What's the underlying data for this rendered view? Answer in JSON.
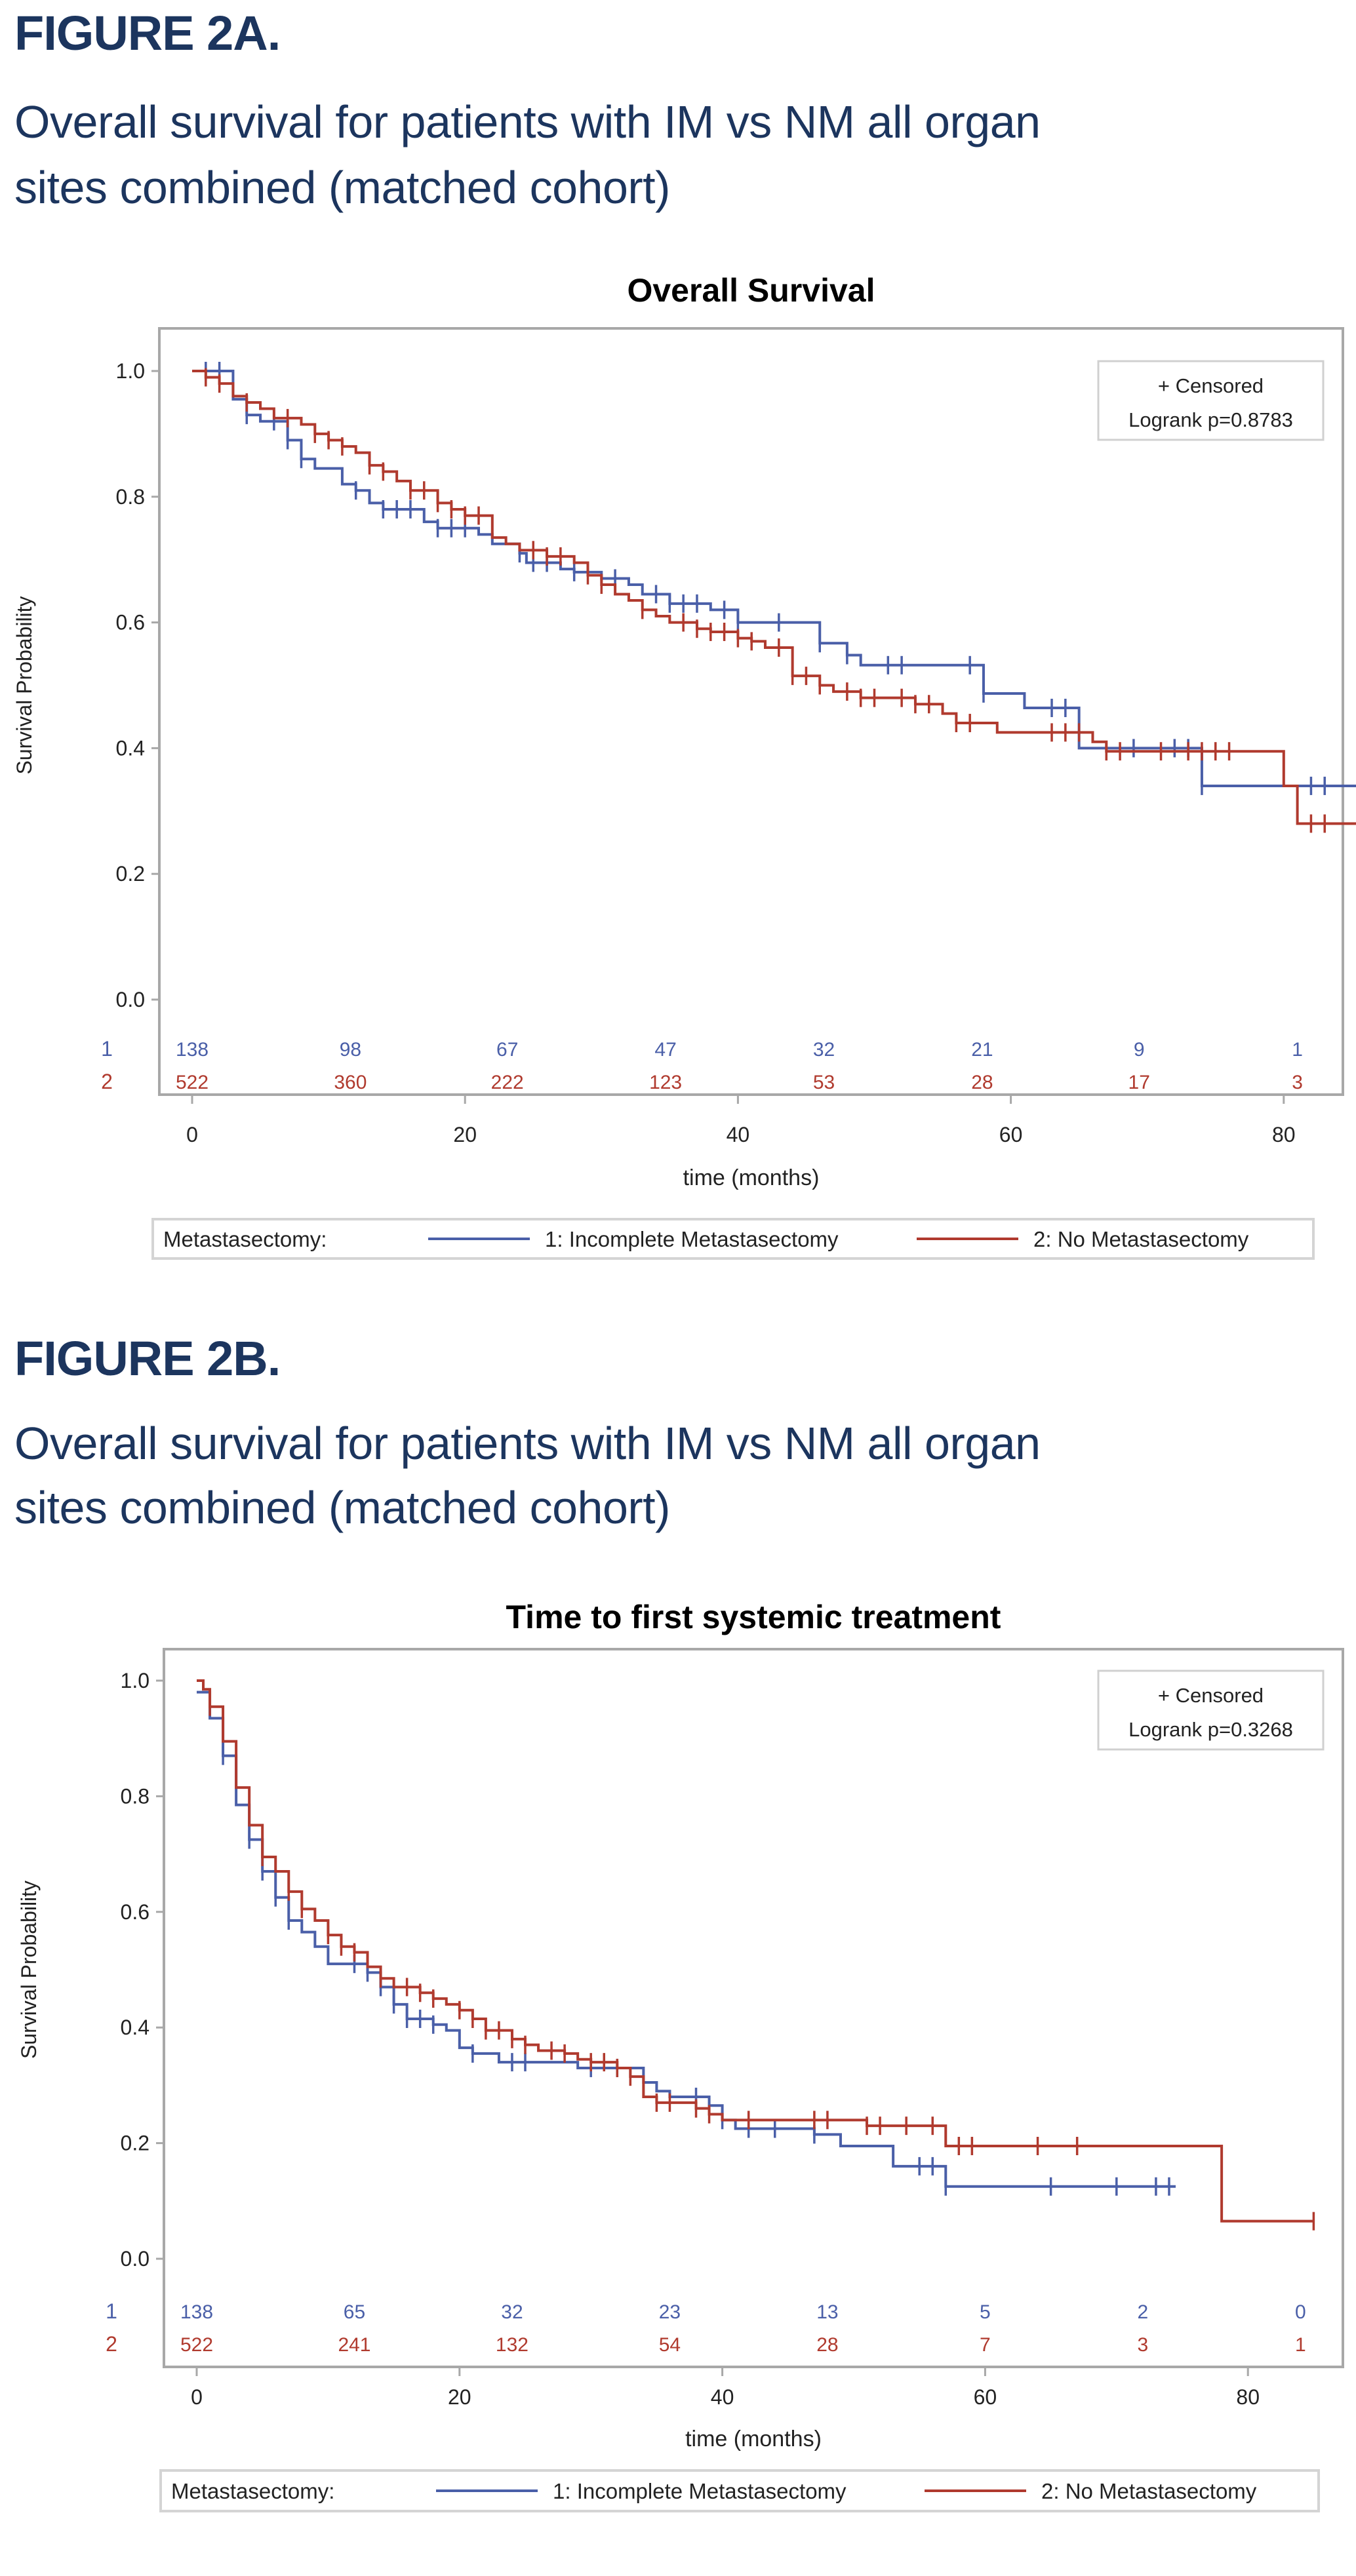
{
  "figures": [
    {
      "label": "FIGURE 2A.",
      "subtitle_line1": "Overall survival for patients with IM vs NM all organ",
      "subtitle_line2": "sites combined (matched cohort)"
    },
    {
      "label": "FIGURE 2B.",
      "subtitle_line1": "Overall survival for patients with IM vs NM all organ",
      "subtitle_line2": "sites combined (matched cohort)"
    }
  ],
  "colors": {
    "heading": "#1c355e",
    "group1": "#4a5fa8",
    "group2": "#b03a2e",
    "frame": "#a8a8a8"
  },
  "chart_data": [
    {
      "type": "line",
      "subtype": "kaplan-meier",
      "title": "Overall Survival",
      "xlabel": "time (months)",
      "ylabel": "Survival Probability",
      "xlim": [
        -4,
        87
      ],
      "ylim": [
        0,
        1
      ],
      "xticks": [
        0,
        20,
        40,
        60,
        80
      ],
      "yticks": [
        "0.0",
        "0.2",
        "0.4",
        "0.6",
        "0.8",
        "1.0"
      ],
      "inset": {
        "line1": "+ Censored",
        "line2": "Logrank p=0.8783"
      },
      "legend": {
        "title": "Metastasectomy:",
        "position": "bottom"
      },
      "risk_times": [
        0,
        11.6,
        23.1,
        34.7,
        46.3,
        57.9,
        69.4,
        81
      ],
      "series": [
        {
          "name": "1: Incomplete Metastasectomy",
          "row_label": "1",
          "color": "#4a5fa8",
          "end": 87,
          "steps": [
            [
              0,
              1.0
            ],
            [
              3,
              0.955
            ],
            [
              4,
              0.93
            ],
            [
              5,
              0.92
            ],
            [
              7,
              0.89
            ],
            [
              8,
              0.86
            ],
            [
              9,
              0.845
            ],
            [
              11,
              0.82
            ],
            [
              12,
              0.81
            ],
            [
              13,
              0.79
            ],
            [
              14,
              0.78
            ],
            [
              17,
              0.76
            ],
            [
              18,
              0.75
            ],
            [
              21,
              0.74
            ],
            [
              22,
              0.725
            ],
            [
              24,
              0.71
            ],
            [
              24.5,
              0.695
            ],
            [
              27,
              0.685
            ],
            [
              28,
              0.68
            ],
            [
              30,
              0.67
            ],
            [
              32,
              0.66
            ],
            [
              33,
              0.645
            ],
            [
              35,
              0.63
            ],
            [
              38,
              0.62
            ],
            [
              40,
              0.6
            ],
            [
              46,
              0.567
            ],
            [
              48,
              0.548
            ],
            [
              49,
              0.532
            ],
            [
              58,
              0.487
            ],
            [
              61,
              0.464
            ],
            [
              65,
              0.4
            ],
            [
              74,
              0.34
            ]
          ],
          "censored": [
            1,
            2,
            4,
            6,
            7,
            8,
            12,
            14,
            15,
            16,
            18,
            19,
            20,
            24,
            25,
            26,
            28,
            31,
            34,
            35,
            36,
            37,
            39,
            40,
            43,
            46,
            48,
            51,
            52,
            57,
            58,
            63,
            64,
            69,
            72,
            73,
            74,
            82,
            83
          ],
          "at_risk": [
            "138",
            "98",
            "67",
            "47",
            "32",
            "21",
            "9",
            "1"
          ]
        },
        {
          "name": "2: No Metastasectomy",
          "row_label": "2",
          "color": "#b03a2e",
          "end": 87,
          "steps": [
            [
              0,
              1.0
            ],
            [
              1,
              0.99
            ],
            [
              2,
              0.98
            ],
            [
              3,
              0.96
            ],
            [
              4,
              0.95
            ],
            [
              5,
              0.94
            ],
            [
              6,
              0.925
            ],
            [
              8,
              0.915
            ],
            [
              9,
              0.9
            ],
            [
              10,
              0.89
            ],
            [
              11,
              0.88
            ],
            [
              12,
              0.87
            ],
            [
              13,
              0.85
            ],
            [
              14,
              0.84
            ],
            [
              15,
              0.825
            ],
            [
              16,
              0.81
            ],
            [
              18,
              0.79
            ],
            [
              19,
              0.78
            ],
            [
              20,
              0.77
            ],
            [
              22,
              0.735
            ],
            [
              23,
              0.725
            ],
            [
              24,
              0.715
            ],
            [
              26,
              0.705
            ],
            [
              28,
              0.695
            ],
            [
              29,
              0.675
            ],
            [
              30,
              0.66
            ],
            [
              31,
              0.645
            ],
            [
              32,
              0.635
            ],
            [
              33,
              0.62
            ],
            [
              34,
              0.61
            ],
            [
              35,
              0.6
            ],
            [
              37,
              0.59
            ],
            [
              38,
              0.585
            ],
            [
              40,
              0.575
            ],
            [
              41,
              0.57
            ],
            [
              42,
              0.56
            ],
            [
              44,
              0.515
            ],
            [
              46,
              0.5
            ],
            [
              47,
              0.49
            ],
            [
              49,
              0.48
            ],
            [
              53,
              0.47
            ],
            [
              55,
              0.455
            ],
            [
              56,
              0.44
            ],
            [
              59,
              0.425
            ],
            [
              66,
              0.41
            ],
            [
              67,
              0.395
            ],
            [
              80,
              0.34
            ],
            [
              81,
              0.28
            ]
          ],
          "censored": [
            1,
            2,
            4,
            7,
            9,
            10,
            11,
            13,
            14,
            16,
            17,
            18,
            19,
            20,
            21,
            25,
            26,
            27,
            29,
            30,
            33,
            36,
            37,
            38,
            39,
            40,
            41,
            43,
            44,
            45,
            46,
            48,
            49,
            50,
            52,
            53,
            54,
            56,
            57,
            63,
            64,
            65,
            67,
            68,
            71,
            73,
            74,
            75,
            76,
            82,
            83
          ],
          "at_risk": [
            "522",
            "360",
            "222",
            "123",
            "53",
            "28",
            "17",
            "3"
          ]
        }
      ]
    },
    {
      "type": "line",
      "subtype": "kaplan-meier",
      "title": "Time to first systemic treatment",
      "xlabel": "time (months)",
      "ylabel": "Survival Probability",
      "xlim": [
        -4,
        87
      ],
      "ylim": [
        0,
        1
      ],
      "xticks": [
        0,
        20,
        40,
        60,
        80
      ],
      "yticks": [
        "0.0",
        "0.2",
        "0.4",
        "0.6",
        "0.8",
        "1.0"
      ],
      "inset": {
        "line1": "+ Censored",
        "line2": "Logrank p=0.3268"
      },
      "legend": {
        "title": "Metastasectomy:",
        "position": "bottom"
      },
      "risk_times": [
        0,
        12,
        24,
        36,
        48,
        60,
        72,
        84
      ],
      "series": [
        {
          "name": "1: Incomplete Metastasectomy",
          "row_label": "1",
          "color": "#4a5fa8",
          "end": 74.5,
          "steps": [
            [
              0,
              0.98
            ],
            [
              1,
              0.935
            ],
            [
              2,
              0.87
            ],
            [
              3,
              0.785
            ],
            [
              4,
              0.725
            ],
            [
              5,
              0.67
            ],
            [
              6,
              0.625
            ],
            [
              7,
              0.585
            ],
            [
              8,
              0.565
            ],
            [
              9,
              0.54
            ],
            [
              10,
              0.51
            ],
            [
              13,
              0.495
            ],
            [
              14,
              0.47
            ],
            [
              15,
              0.44
            ],
            [
              16,
              0.415
            ],
            [
              18,
              0.405
            ],
            [
              19,
              0.395
            ],
            [
              20,
              0.365
            ],
            [
              21,
              0.355
            ],
            [
              23,
              0.34
            ],
            [
              29,
              0.33
            ],
            [
              34,
              0.305
            ],
            [
              35,
              0.29
            ],
            [
              36,
              0.28
            ],
            [
              39,
              0.265
            ],
            [
              40,
              0.24
            ],
            [
              41,
              0.225
            ],
            [
              47,
              0.215
            ],
            [
              49,
              0.195
            ],
            [
              53,
              0.16
            ],
            [
              57,
              0.125
            ]
          ],
          "censored": [
            2,
            4,
            5,
            6,
            7,
            12,
            13,
            14,
            15,
            16,
            17,
            18,
            21,
            24,
            25,
            30,
            32,
            38,
            40,
            42,
            44,
            47,
            55,
            56,
            57,
            65,
            70,
            73,
            74
          ],
          "at_risk": [
            "138",
            "65",
            "32",
            "23",
            "13",
            "5",
            "2",
            "0"
          ]
        },
        {
          "name": "2: No Metastasectomy",
          "row_label": "2",
          "color": "#b03a2e",
          "end": 85,
          "steps": [
            [
              0,
              1.0
            ],
            [
              0.5,
              0.985
            ],
            [
              1,
              0.955
            ],
            [
              2,
              0.895
            ],
            [
              3,
              0.815
            ],
            [
              4,
              0.75
            ],
            [
              5,
              0.695
            ],
            [
              6,
              0.67
            ],
            [
              7,
              0.635
            ],
            [
              8,
              0.605
            ],
            [
              9,
              0.585
            ],
            [
              10,
              0.56
            ],
            [
              11,
              0.54
            ],
            [
              12,
              0.53
            ],
            [
              13,
              0.505
            ],
            [
              14,
              0.485
            ],
            [
              15,
              0.47
            ],
            [
              17,
              0.46
            ],
            [
              18,
              0.45
            ],
            [
              19,
              0.44
            ],
            [
              20,
              0.43
            ],
            [
              21,
              0.415
            ],
            [
              22,
              0.395
            ],
            [
              24,
              0.38
            ],
            [
              25,
              0.37
            ],
            [
              26,
              0.36
            ],
            [
              28,
              0.355
            ],
            [
              29,
              0.345
            ],
            [
              30,
              0.34
            ],
            [
              32,
              0.33
            ],
            [
              33,
              0.315
            ],
            [
              34,
              0.28
            ],
            [
              35,
              0.27
            ],
            [
              38,
              0.26
            ],
            [
              39,
              0.25
            ],
            [
              40,
              0.24
            ],
            [
              51,
              0.23
            ],
            [
              57,
              0.195
            ],
            [
              78,
              0.065
            ]
          ],
          "censored": [
            1,
            5,
            7,
            8,
            10,
            11,
            12,
            14,
            16,
            17,
            18,
            20,
            21,
            22,
            23,
            24,
            25,
            27,
            28,
            30,
            31,
            32,
            33,
            35,
            36,
            38,
            39,
            42,
            47,
            48,
            51,
            52,
            54,
            56,
            58,
            59,
            64,
            67,
            85
          ],
          "at_risk": [
            "522",
            "241",
            "132",
            "54",
            "28",
            "7",
            "3",
            "1"
          ]
        }
      ]
    }
  ]
}
